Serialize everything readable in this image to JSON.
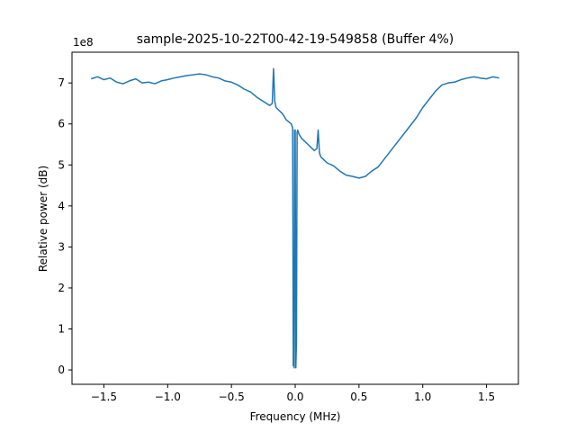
{
  "chart_data": {
    "type": "line",
    "title": "sample-2025-10-22T00-42-19-549858 (Buffer 4%)",
    "xlabel": "Frequency (MHz)",
    "ylabel": "Relative power (dB)",
    "y_offset_label": "1e8",
    "xlim": [
      -1.75,
      1.75
    ],
    "ylim": [
      -0.35,
      7.75
    ],
    "x_ticks": [
      -1.5,
      -1.0,
      -0.5,
      0.0,
      0.5,
      1.0,
      1.5
    ],
    "x_tick_labels": [
      "−1.5",
      "−1.0",
      "−0.5",
      "0.0",
      "0.5",
      "1.0",
      "1.5"
    ],
    "y_ticks": [
      0,
      1,
      2,
      3,
      4,
      5,
      6,
      7
    ],
    "y_tick_labels": [
      "0",
      "1",
      "2",
      "3",
      "4",
      "5",
      "6",
      "7"
    ],
    "grid": false,
    "line_color": "#1f77b4",
    "series": [
      {
        "x": [
          -1.6,
          -1.55,
          -1.5,
          -1.45,
          -1.4,
          -1.35,
          -1.3,
          -1.25,
          -1.2,
          -1.15,
          -1.1,
          -1.05,
          -1.0,
          -0.95,
          -0.9,
          -0.85,
          -0.8,
          -0.75,
          -0.7,
          -0.65,
          -0.6,
          -0.55,
          -0.5,
          -0.45,
          -0.4,
          -0.35,
          -0.3,
          -0.25,
          -0.2,
          -0.18,
          -0.17,
          -0.16,
          -0.15,
          -0.1,
          -0.07,
          -0.05,
          -0.03,
          -0.02,
          -0.015,
          -0.01,
          -0.008,
          -0.005,
          0.0,
          0.005,
          0.01,
          0.015,
          0.02,
          0.03,
          0.05,
          0.1,
          0.15,
          0.17,
          0.18,
          0.19,
          0.2,
          0.25,
          0.3,
          0.35,
          0.4,
          0.45,
          0.5,
          0.55,
          0.6,
          0.65,
          0.7,
          0.75,
          0.8,
          0.85,
          0.9,
          0.95,
          1.0,
          1.05,
          1.1,
          1.15,
          1.2,
          1.25,
          1.3,
          1.35,
          1.4,
          1.45,
          1.5,
          1.55,
          1.6
        ],
        "y": [
          7.1,
          7.15,
          7.08,
          7.12,
          7.02,
          6.98,
          7.05,
          7.1,
          7.0,
          7.02,
          6.98,
          7.05,
          7.08,
          7.12,
          7.15,
          7.18,
          7.2,
          7.22,
          7.2,
          7.15,
          7.12,
          7.05,
          7.02,
          6.95,
          6.85,
          6.78,
          6.65,
          6.55,
          6.45,
          6.5,
          7.35,
          6.55,
          6.4,
          6.25,
          6.1,
          6.05,
          6.0,
          5.9,
          0.1,
          0.85,
          0.05,
          5.85,
          5.85,
          0.05,
          0.7,
          5.8,
          5.85,
          5.75,
          5.65,
          5.5,
          5.35,
          5.4,
          5.85,
          5.3,
          5.2,
          5.05,
          4.98,
          4.85,
          4.75,
          4.72,
          4.68,
          4.72,
          4.85,
          4.95,
          5.15,
          5.35,
          5.55,
          5.75,
          5.95,
          6.15,
          6.4,
          6.6,
          6.8,
          6.95,
          7.0,
          7.02,
          7.08,
          7.12,
          7.15,
          7.12,
          7.1,
          7.15,
          7.12
        ]
      }
    ]
  }
}
